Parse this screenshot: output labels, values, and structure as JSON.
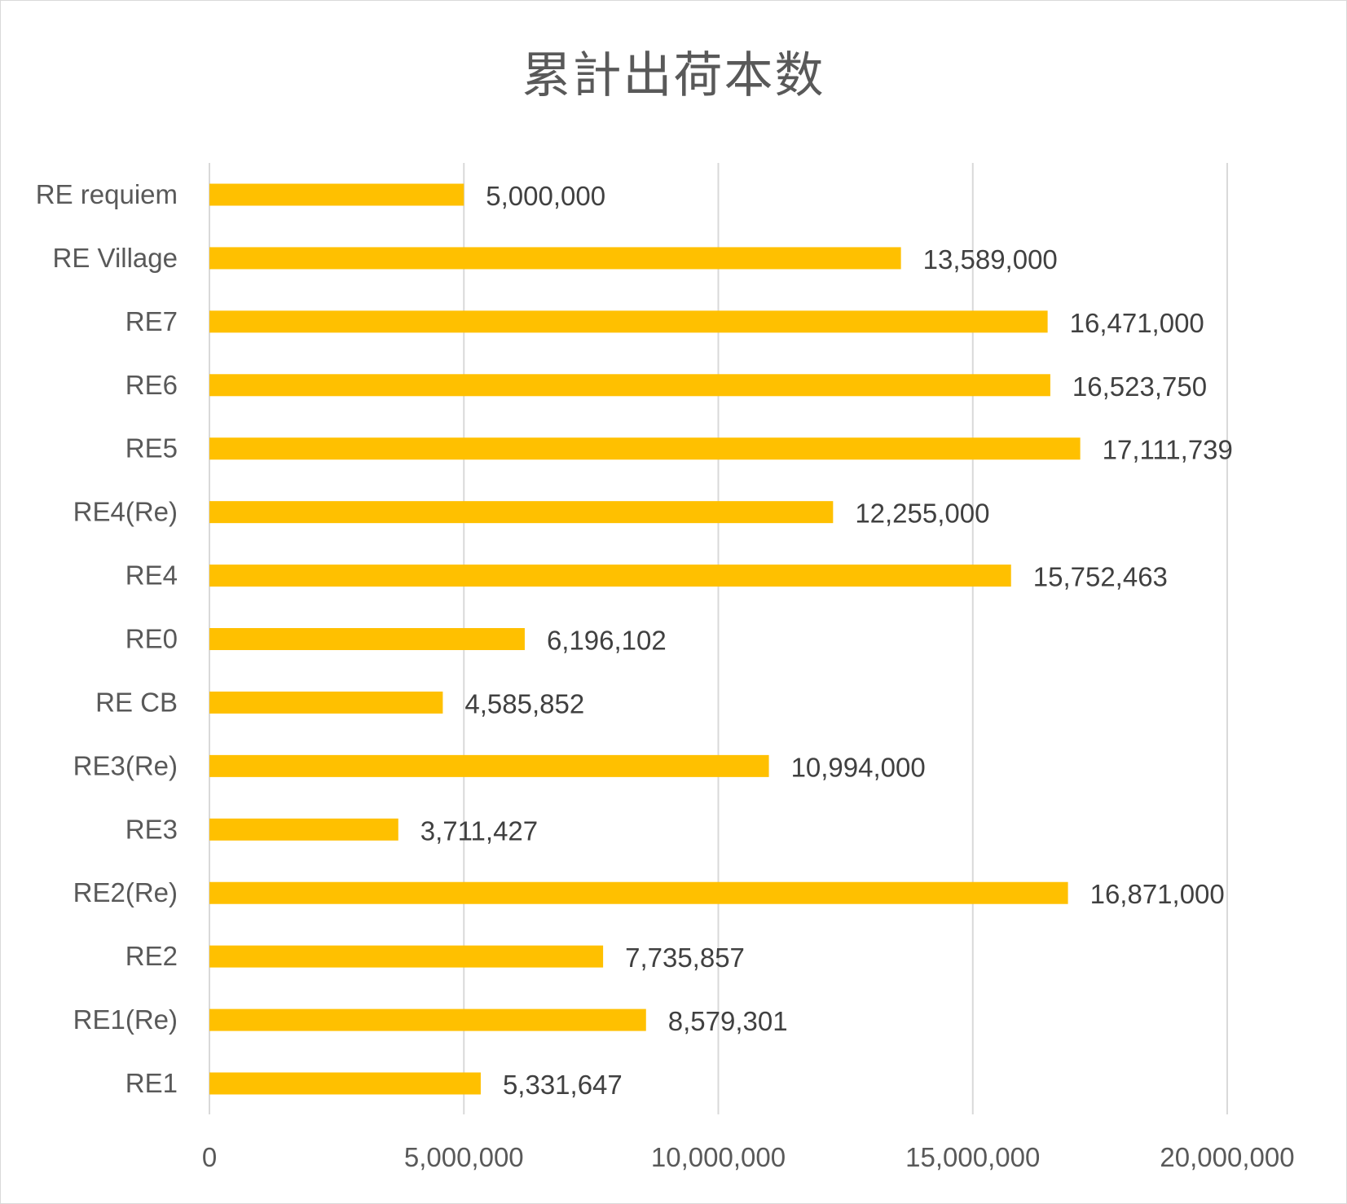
{
  "chart_data": {
    "type": "bar",
    "orientation": "horizontal",
    "title": "累計出荷本数",
    "categories": [
      "RE requiem",
      "RE Village",
      "RE7",
      "RE6",
      "RE5",
      "RE4(Re)",
      "RE4",
      "RE0",
      "RE CB",
      "RE3(Re)",
      "RE3",
      "RE2(Re)",
      "RE2",
      "RE1(Re)",
      "RE1"
    ],
    "values": [
      5000000,
      13589000,
      16471000,
      16523750,
      17111739,
      12255000,
      15752463,
      6196102,
      4585852,
      10994000,
      3711427,
      16871000,
      7735857,
      8579301,
      5331647
    ],
    "value_labels": [
      "5,000,000",
      "13,589,000",
      "16,471,000",
      "16,523,750",
      "17,111,739",
      "12,255,000",
      "15,752,463",
      "6,196,102",
      "4,585,852",
      "10,994,000",
      "3,711,427",
      "16,871,000",
      "7,735,857",
      "8,579,301",
      "5,331,647"
    ],
    "xlim": [
      0,
      20000000
    ],
    "x_ticks": [
      0,
      5000000,
      10000000,
      15000000,
      20000000
    ],
    "x_tick_labels": [
      "0",
      "5,000,000",
      "10,000,000",
      "15,000,000",
      "20,000,000"
    ],
    "grid": true,
    "legend": "none",
    "bar_color": "#FFC000",
    "grid_color": "#d9d9d9",
    "text_color": "#595959"
  }
}
